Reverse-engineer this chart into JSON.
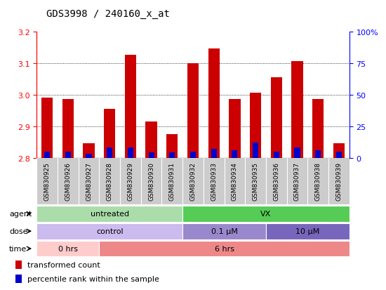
{
  "title": "GDS3998 / 240160_x_at",
  "samples": [
    "GSM830925",
    "GSM830926",
    "GSM830927",
    "GSM830928",
    "GSM830929",
    "GSM830930",
    "GSM830931",
    "GSM830932",
    "GSM830933",
    "GSM830934",
    "GSM830935",
    "GSM830936",
    "GSM830937",
    "GSM830938",
    "GSM830939"
  ],
  "transformed_count": [
    2.99,
    2.985,
    2.845,
    2.955,
    3.125,
    2.915,
    2.875,
    3.1,
    3.145,
    2.985,
    3.005,
    3.055,
    3.105,
    2.985,
    2.845
  ],
  "percentile_rank": [
    5,
    5,
    3,
    8,
    8,
    4,
    4,
    5,
    7,
    6,
    12,
    5,
    8,
    6,
    5
  ],
  "ylim_left": [
    2.8,
    3.2
  ],
  "ylim_right": [
    0,
    100
  ],
  "yticks_left": [
    2.8,
    2.9,
    3.0,
    3.1,
    3.2
  ],
  "yticks_right": [
    0,
    25,
    50,
    75,
    100
  ],
  "bar_color": "#cc0000",
  "percentile_color": "#0000cc",
  "agent_groups": [
    {
      "label": "untreated",
      "start": 0,
      "end": 7,
      "color": "#aaddaa"
    },
    {
      "label": "VX",
      "start": 7,
      "end": 15,
      "color": "#55cc55"
    }
  ],
  "dose_groups": [
    {
      "label": "control",
      "start": 0,
      "end": 7,
      "color": "#ccbbee"
    },
    {
      "label": "0.1 μM",
      "start": 7,
      "end": 11,
      "color": "#9988cc"
    },
    {
      "label": "10 μM",
      "start": 11,
      "end": 15,
      "color": "#7766bb"
    }
  ],
  "time_groups": [
    {
      "label": "0 hrs",
      "start": 0,
      "end": 3,
      "color": "#ffcccc"
    },
    {
      "label": "6 hrs",
      "start": 3,
      "end": 15,
      "color": "#ee8888"
    }
  ],
  "legend_items": [
    {
      "label": "transformed count",
      "color": "#cc0000"
    },
    {
      "label": "percentile rank within the sample",
      "color": "#0000cc"
    }
  ],
  "xtick_bg": "#cccccc",
  "row_labels": [
    "agent",
    "dose",
    "time"
  ]
}
